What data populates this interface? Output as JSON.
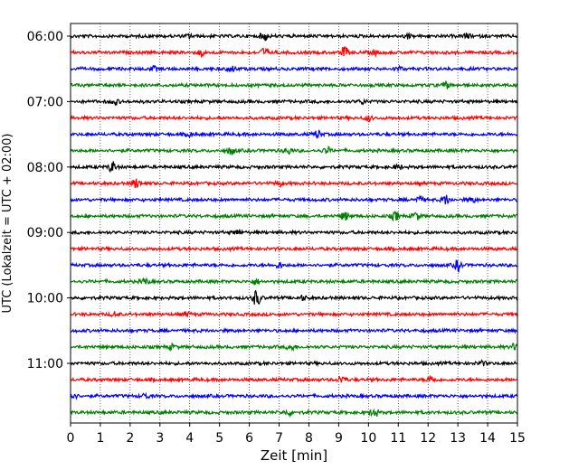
{
  "chart_data": {
    "type": "line",
    "title": "",
    "xlabel": "Zeit  [min]",
    "ylabel": "UTC (Lokalzeit = UTC + 02:00)",
    "xlim": [
      0,
      15
    ],
    "x_ticks": [
      0,
      1,
      2,
      3,
      4,
      5,
      6,
      7,
      8,
      9,
      10,
      11,
      12,
      13,
      14,
      15
    ],
    "y_tick_labels": [
      "06:00",
      "07:00",
      "08:00",
      "09:00",
      "10:00",
      "11:00"
    ],
    "grid": "vertical dotted lines at each minute",
    "trace_interval_min": 15,
    "traces": [
      {
        "start": "06:00",
        "color": "#000000",
        "events": [
          [
            4.0,
            1.0
          ],
          [
            6.5,
            2.0
          ],
          [
            11.3,
            1.0
          ],
          [
            13.3,
            1.2
          ]
        ]
      },
      {
        "start": "06:15",
        "color": "#ff0000",
        "events": [
          [
            4.4,
            1.6
          ],
          [
            6.5,
            2.0
          ],
          [
            9.2,
            2.5
          ],
          [
            10.2,
            1.0
          ]
        ]
      },
      {
        "start": "06:30",
        "color": "#0000ff",
        "events": [
          [
            2.8,
            1.0
          ],
          [
            5.4,
            1.6
          ],
          [
            11.0,
            1.0
          ]
        ]
      },
      {
        "start": "06:45",
        "color": "#008000",
        "events": [
          [
            12.6,
            1.5
          ]
        ]
      },
      {
        "start": "07:00",
        "color": "#000000",
        "events": [
          [
            1.5,
            1.2
          ],
          [
            9.8,
            1.0
          ]
        ]
      },
      {
        "start": "07:15",
        "color": "#ff0000",
        "events": [
          [
            10.0,
            1.2
          ]
        ]
      },
      {
        "start": "07:30",
        "color": "#0000ff",
        "events": [
          [
            8.3,
            1.8
          ],
          [
            4.0,
            1.0
          ]
        ]
      },
      {
        "start": "07:45",
        "color": "#008000",
        "events": [
          [
            5.4,
            1.8
          ],
          [
            7.3,
            1.5
          ],
          [
            8.6,
            1.6
          ]
        ]
      },
      {
        "start": "08:00",
        "color": "#000000",
        "events": [
          [
            1.4,
            2.6
          ],
          [
            11.0,
            1.0
          ]
        ]
      },
      {
        "start": "08:15",
        "color": "#ff0000",
        "events": [
          [
            2.2,
            2.2
          ],
          [
            7.0,
            1.2
          ]
        ]
      },
      {
        "start": "08:30",
        "color": "#0000ff",
        "events": [
          [
            12.6,
            2.2
          ],
          [
            11.7,
            1.4
          ],
          [
            13.5,
            1.0
          ]
        ]
      },
      {
        "start": "08:45",
        "color": "#008000",
        "events": [
          [
            9.2,
            2.0
          ],
          [
            10.9,
            2.0
          ],
          [
            11.6,
            1.8
          ]
        ]
      },
      {
        "start": "09:00",
        "color": "#000000",
        "events": [
          [
            5.6,
            1.0
          ]
        ]
      },
      {
        "start": "09:15",
        "color": "#ff0000",
        "events": []
      },
      {
        "start": "09:30",
        "color": "#0000ff",
        "events": [
          [
            13.0,
            2.6
          ],
          [
            7.0,
            1.2
          ]
        ]
      },
      {
        "start": "09:45",
        "color": "#008000",
        "events": [
          [
            2.5,
            1.4
          ],
          [
            6.2,
            1.2
          ]
        ]
      },
      {
        "start": "10:00",
        "color": "#000000",
        "events": [
          [
            6.25,
            4.0
          ],
          [
            7.8,
            1.0
          ]
        ]
      },
      {
        "start": "10:15",
        "color": "#ff0000",
        "events": [
          [
            1.5,
            1.2
          ],
          [
            3.9,
            1.0
          ]
        ]
      },
      {
        "start": "10:30",
        "color": "#0000ff",
        "events": []
      },
      {
        "start": "10:45",
        "color": "#008000",
        "events": [
          [
            7.4,
            1.5
          ],
          [
            3.4,
            1.0
          ],
          [
            14.9,
            1.4
          ]
        ]
      },
      {
        "start": "11:00",
        "color": "#000000",
        "events": [
          [
            13.8,
            1.0
          ]
        ]
      },
      {
        "start": "11:15",
        "color": "#ff0000",
        "events": [
          [
            9.1,
            2.0
          ],
          [
            12.1,
            2.0
          ]
        ]
      },
      {
        "start": "11:30",
        "color": "#0000ff",
        "events": [
          [
            2.5,
            1.2
          ],
          [
            0.1,
            1.2
          ]
        ]
      },
      {
        "start": "11:45",
        "color": "#008000",
        "events": [
          [
            10.2,
            2.2
          ],
          [
            7.3,
            1.2
          ]
        ]
      }
    ]
  }
}
